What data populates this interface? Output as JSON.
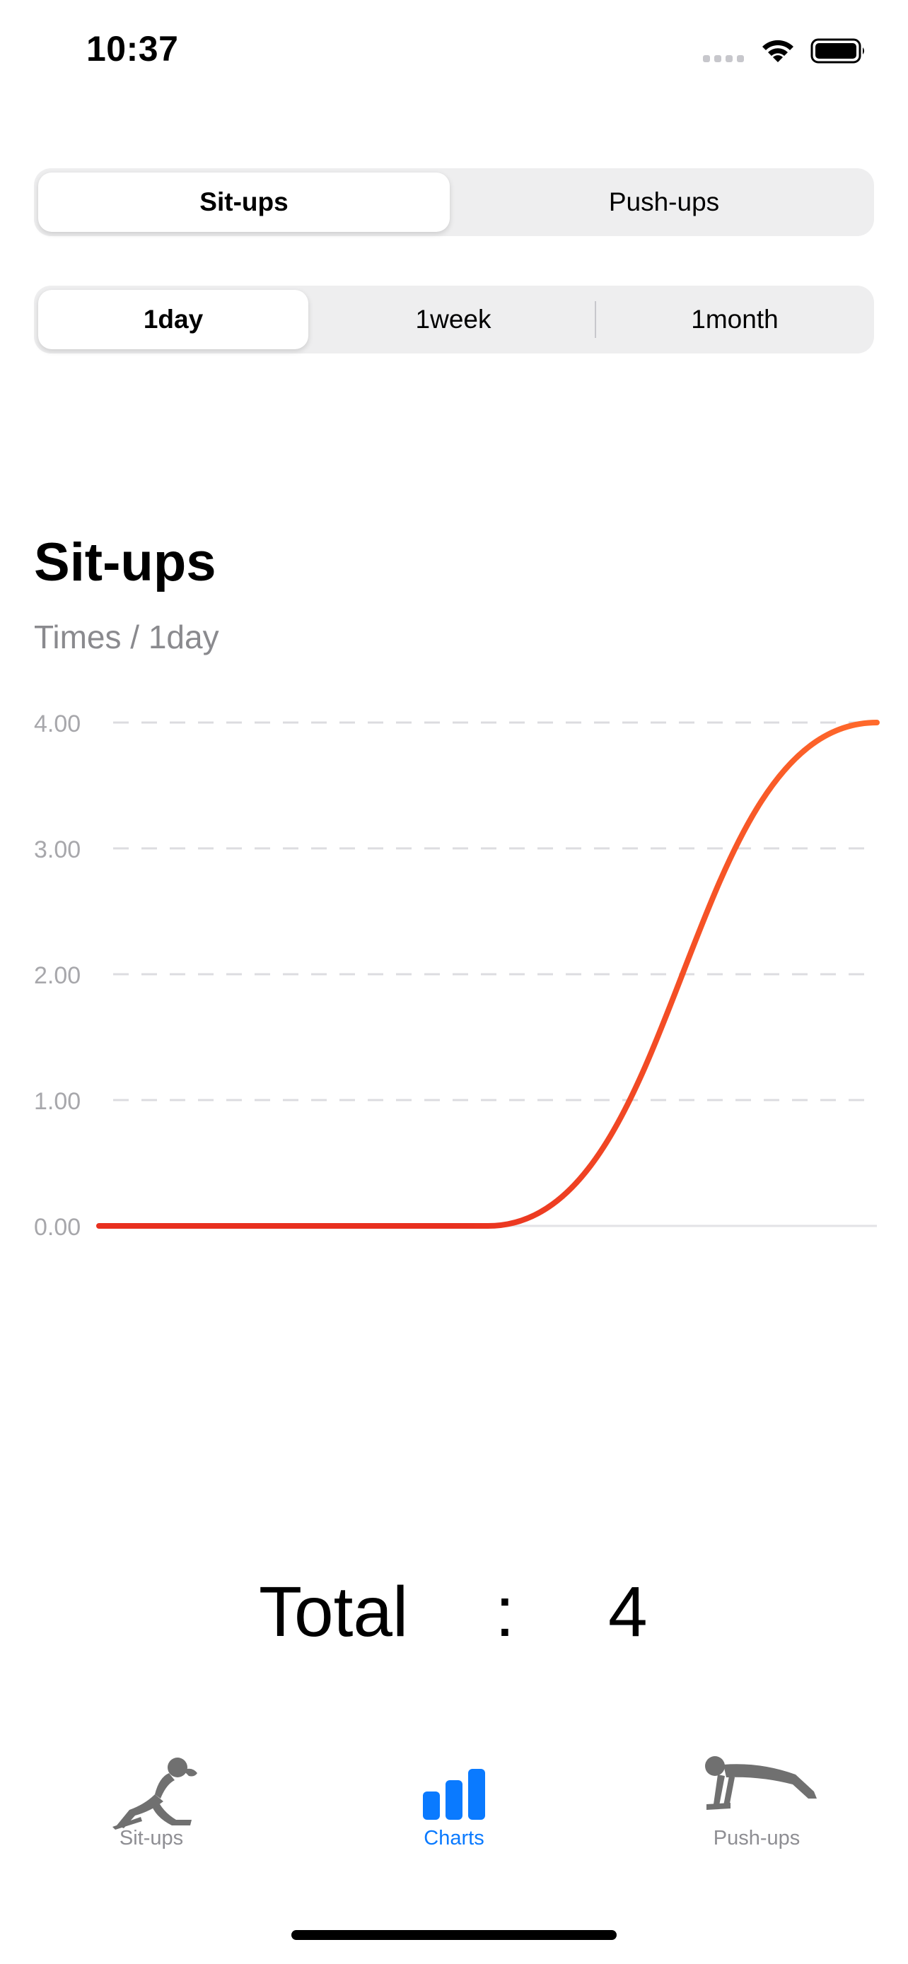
{
  "status_bar": {
    "time": "10:37"
  },
  "exercise_selector": {
    "options": [
      "Sit-ups",
      "Push-ups"
    ],
    "selected": "Sit-ups"
  },
  "period_selector": {
    "options": [
      "1day",
      "1week",
      "1month"
    ],
    "selected": "1day"
  },
  "chart": {
    "title": "Sit-ups",
    "subtitle": "Times / 1day"
  },
  "chart_data": {
    "type": "line",
    "title": "Sit-ups",
    "subtitle": "Times / 1day",
    "xlabel": "",
    "ylabel": "",
    "ylim": [
      0,
      4
    ],
    "yticks": [
      "0.00",
      "1.00",
      "2.00",
      "3.00",
      "4.00"
    ],
    "grid": true,
    "smooth": true,
    "colors": [
      "#e8301f",
      "#ff6a2b"
    ],
    "x": [
      0,
      1,
      2
    ],
    "values": [
      0,
      0,
      4
    ]
  },
  "total": {
    "label": "Total",
    "separator": ":",
    "value": "4"
  },
  "tab_bar": {
    "items": [
      {
        "label": "Sit-ups",
        "icon": "situp-figure-icon"
      },
      {
        "label": "Charts",
        "icon": "bar-chart-icon"
      },
      {
        "label": "Push-ups",
        "icon": "pushup-figure-icon"
      }
    ],
    "active": "Charts",
    "accent_color": "#0a7aff"
  }
}
